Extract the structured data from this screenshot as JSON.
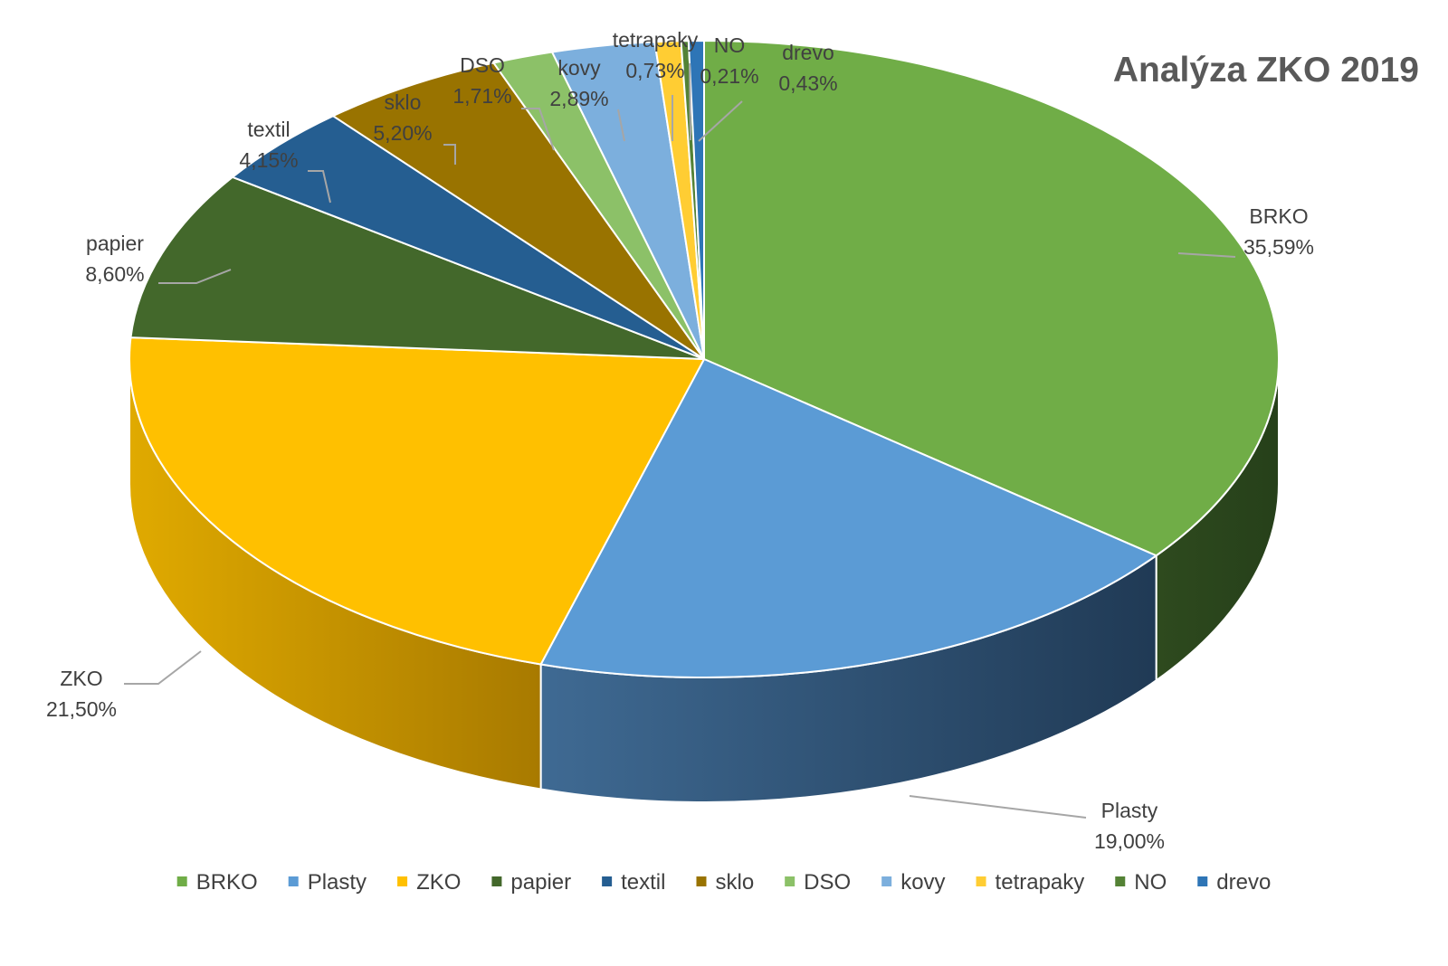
{
  "chart_data": {
    "type": "pie",
    "title": "Analýza ZKO 2019",
    "legend_position": "bottom",
    "series": [
      {
        "name": "BRKO",
        "value": 35.59,
        "label": "35,59%",
        "color": "#70AD47"
      },
      {
        "name": "Plasty",
        "value": 19.0,
        "label": "19,00%",
        "color": "#5B9BD5"
      },
      {
        "name": "ZKO",
        "value": 21.5,
        "label": "21,50%",
        "color": "#FFC000"
      },
      {
        "name": "papier",
        "value": 8.6,
        "label": "8,60%",
        "color": "#43682B"
      },
      {
        "name": "textil",
        "value": 4.15,
        "label": "4,15%",
        "color": "#255E91"
      },
      {
        "name": "sklo",
        "value": 5.2,
        "label": "5,20%",
        "color": "#997300"
      },
      {
        "name": "DSO",
        "value": 1.71,
        "label": "1,71%",
        "color": "#8CC168"
      },
      {
        "name": "kovy",
        "value": 2.89,
        "label": "2,89%",
        "color": "#7CAFDD"
      },
      {
        "name": "tetrapaky",
        "value": 0.73,
        "label": "0,73%",
        "color": "#FFCD33"
      },
      {
        "name": "NO",
        "value": 0.21,
        "label": "0,21%",
        "color": "#548235"
      },
      {
        "name": "drevo",
        "value": 0.43,
        "label": "0,43%",
        "color": "#2E75B6"
      }
    ]
  }
}
